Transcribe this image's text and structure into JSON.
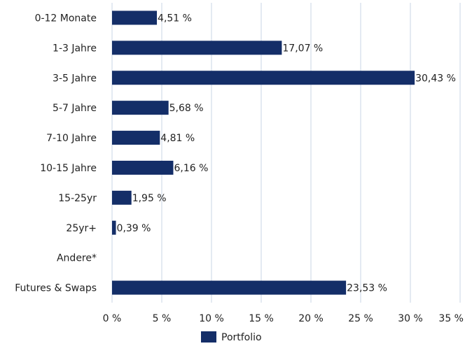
{
  "chart_data": {
    "type": "bar",
    "orientation": "horizontal",
    "categories": [
      "0-12 Monate",
      "1-3 Jahre",
      "3-5 Jahre",
      "5-7 Jahre",
      "7-10 Jahre",
      "10-15 Jahre",
      "15-25yr",
      "25yr+",
      "Andere*",
      "Futures & Swaps"
    ],
    "series": [
      {
        "name": "Portfolio",
        "color": "#142e68",
        "values": [
          4.51,
          17.07,
          30.43,
          5.68,
          4.81,
          6.16,
          1.95,
          0.39,
          null,
          23.53
        ],
        "value_labels": [
          "4,51 %",
          "17,07 %",
          "30,43 %",
          "5,68 %",
          "4,81 %",
          "6,16 %",
          "1,95 %",
          "0,39 %",
          null,
          "23,53 %"
        ]
      }
    ],
    "xlim": [
      0,
      35
    ],
    "xticks": [
      {
        "value": 0,
        "label": "0 %"
      },
      {
        "value": 5,
        "label": "5 %"
      },
      {
        "value": 10,
        "label": "10 %"
      },
      {
        "value": 15,
        "label": "15 %"
      },
      {
        "value": 20,
        "label": "20 %"
      },
      {
        "value": 25,
        "label": "25 %"
      },
      {
        "value": 30,
        "label": "30 %"
      },
      {
        "value": 35,
        "label": "35 %"
      }
    ],
    "grid": true,
    "legend": "bottom"
  }
}
